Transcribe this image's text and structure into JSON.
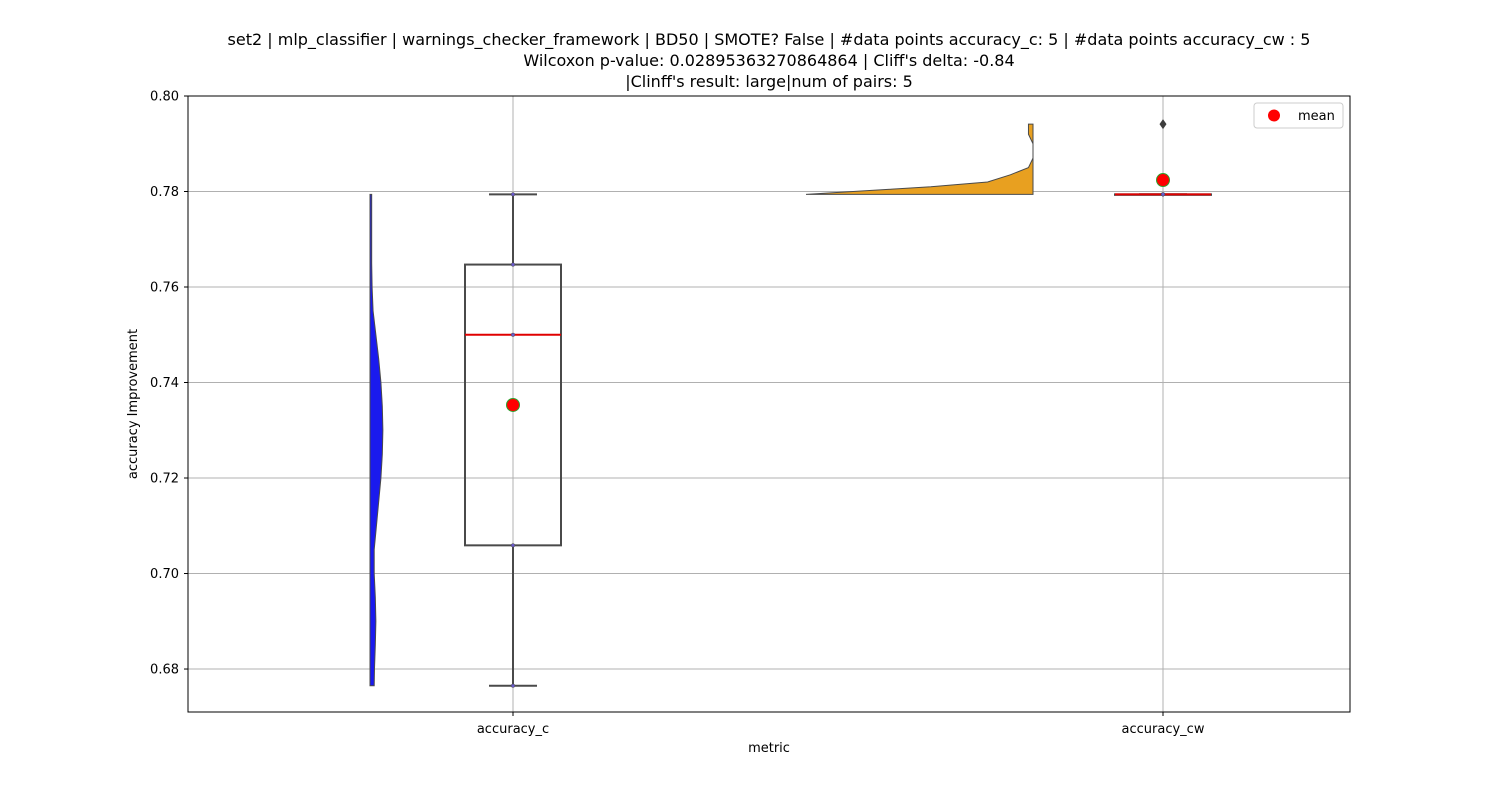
{
  "chart_data": {
    "type": "boxplot-violin",
    "title_lines": [
      "set2 | mlp_classifier | warnings_checker_framework | BD50 | SMOTE? False | #data points accuracy_c: 5 | #data points accuracy_cw : 5",
      "Wilcoxon p-value: 0.02895363270864864 | Cliff's delta: -0.84",
      "|Clinff's result: large|num of pairs: 5"
    ],
    "xlabel": "metric",
    "ylabel": "accuracy Improvement",
    "ylim": [
      0.671,
      0.8
    ],
    "yticks": [
      "0.68",
      "0.70",
      "0.72",
      "0.74",
      "0.76",
      "0.78",
      "0.80"
    ],
    "ytick_values": [
      0.68,
      0.7,
      0.72,
      0.74,
      0.76,
      0.78,
      0.8
    ],
    "grid": true,
    "legend": {
      "position": "top-right",
      "entries": [
        "mean"
      ]
    },
    "categories": [
      "accuracy_c",
      "accuracy_cw"
    ],
    "boxes": [
      {
        "category": "accuracy_c",
        "whisker_low": 0.6765,
        "q1": 0.7059,
        "median": 0.75,
        "q3": 0.7647,
        "whisker_high": 0.7794,
        "mean": 0.7353,
        "outliers": [],
        "points": [
          0.6765,
          0.7059,
          0.75,
          0.7647,
          0.7794
        ]
      },
      {
        "category": "accuracy_cw",
        "whisker_low": 0.7794,
        "q1": 0.7794,
        "median": 0.7794,
        "q3": 0.7794,
        "whisker_high": 0.7794,
        "mean": 0.7824,
        "outliers": [
          0.7941
        ],
        "points": [
          0.7794,
          0.7794,
          0.7794,
          0.7794,
          0.7941
        ]
      }
    ],
    "violins": [
      {
        "category": "accuracy_c",
        "color": "#1a1aee",
        "side": "right",
        "profile": [
          [
            0.6765,
            0.3
          ],
          [
            0.68,
            0.32
          ],
          [
            0.685,
            0.38
          ],
          [
            0.69,
            0.42
          ],
          [
            0.695,
            0.38
          ],
          [
            0.7,
            0.3
          ],
          [
            0.705,
            0.3
          ],
          [
            0.71,
            0.46
          ],
          [
            0.715,
            0.62
          ],
          [
            0.72,
            0.78
          ],
          [
            0.725,
            0.88
          ],
          [
            0.73,
            0.92
          ],
          [
            0.735,
            0.88
          ],
          [
            0.74,
            0.78
          ],
          [
            0.745,
            0.62
          ],
          [
            0.75,
            0.42
          ],
          [
            0.755,
            0.22
          ],
          [
            0.76,
            0.15
          ],
          [
            0.765,
            0.12
          ],
          [
            0.77,
            0.12
          ],
          [
            0.7794,
            0.12
          ]
        ]
      },
      {
        "category": "accuracy_cw",
        "color": "#e8a020",
        "side": "left",
        "profile": [
          [
            0.7794,
            1.0
          ],
          [
            0.7805,
            0.62
          ],
          [
            0.781,
            0.45
          ],
          [
            0.782,
            0.2
          ],
          [
            0.7835,
            0.1
          ],
          [
            0.785,
            0.02
          ],
          [
            0.787,
            0.0
          ],
          [
            0.79,
            0.0
          ],
          [
            0.792,
            0.02
          ],
          [
            0.7941,
            0.02
          ]
        ]
      }
    ],
    "colors": {
      "box_edge": "#4a4a4a",
      "median": "#e00000",
      "mean_fill": "#ff0000",
      "mean_edge": "#2ca02c",
      "grid": "#b0b0b0"
    }
  }
}
